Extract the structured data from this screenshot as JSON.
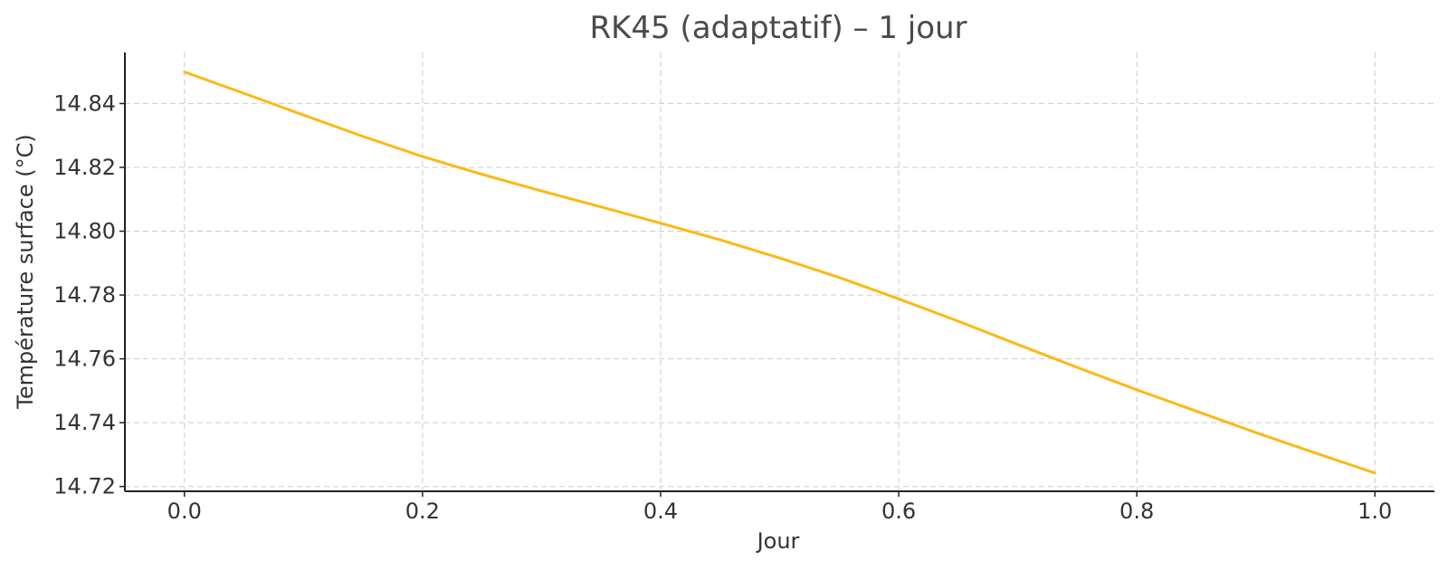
{
  "chart_data": {
    "type": "line",
    "title": "RK45 (adaptatif) – 1 jour",
    "xlabel": "Jour",
    "ylabel": "Température surface (°C)",
    "xlim": [
      -0.05,
      1.05
    ],
    "ylim": [
      14.7185,
      14.856
    ],
    "xticks": [
      0.0,
      0.2,
      0.4,
      0.6,
      0.8,
      1.0
    ],
    "xtick_labels": [
      "0.0",
      "0.2",
      "0.4",
      "0.6",
      "0.8",
      "1.0"
    ],
    "yticks": [
      14.72,
      14.74,
      14.76,
      14.78,
      14.8,
      14.82,
      14.84
    ],
    "ytick_labels": [
      "14.72",
      "14.74",
      "14.76",
      "14.78",
      "14.80",
      "14.82",
      "14.84"
    ],
    "grid": true,
    "series": [
      {
        "color": "#FDB813",
        "x": [
          0.0,
          0.05,
          0.1,
          0.15,
          0.2,
          0.25,
          0.3,
          0.35,
          0.4,
          0.45,
          0.5,
          0.55,
          0.6,
          0.65,
          0.7,
          0.75,
          0.8,
          0.85,
          0.9,
          0.95,
          1.0
        ],
        "y": [
          14.8499,
          14.8432,
          14.8364,
          14.8297,
          14.8234,
          14.8178,
          14.8126,
          14.8076,
          14.8025,
          14.7973,
          14.7916,
          14.7855,
          14.7788,
          14.7718,
          14.7645,
          14.7573,
          14.7503,
          14.7436,
          14.7369,
          14.7305,
          14.7242
        ]
      }
    ]
  }
}
